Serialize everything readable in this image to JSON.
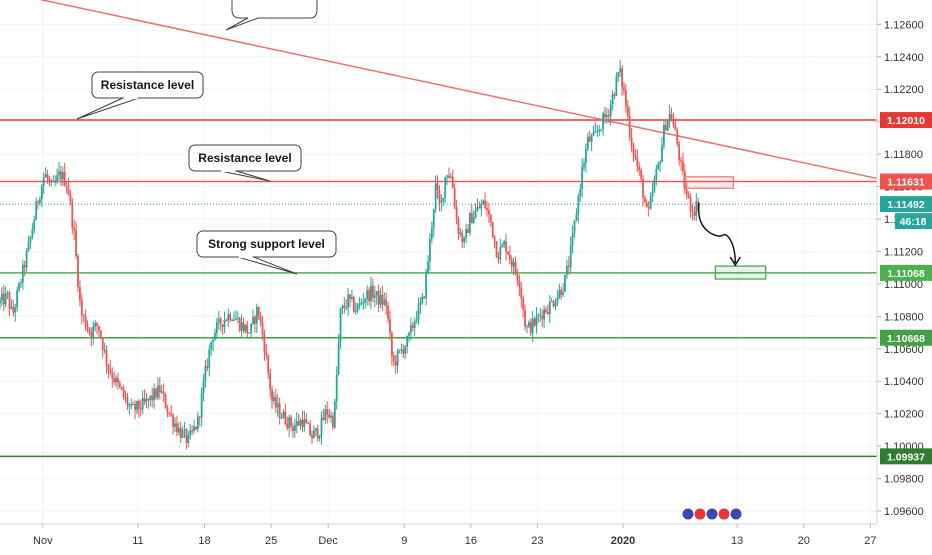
{
  "chart_data": {
    "type": "candlestick",
    "instrument_hint": "forex pair",
    "ylim": [
      1.0952,
      1.1275
    ],
    "y_ticks": [
      "1.12600",
      "1.12400",
      "1.12200",
      "1.12000",
      "1.11800",
      "1.11600",
      "1.11400",
      "1.11200",
      "1.11000",
      "1.10800",
      "1.10600",
      "1.10400",
      "1.10200",
      "1.10000",
      "1.09800",
      "1.09600"
    ],
    "x_ticks": [
      {
        "label": "Nov",
        "day": 0
      },
      {
        "label": "11",
        "day": 10
      },
      {
        "label": "18",
        "day": 17
      },
      {
        "label": "25",
        "day": 24
      },
      {
        "label": "Dec",
        "day": 30
      },
      {
        "label": "9",
        "day": 38
      },
      {
        "label": "16",
        "day": 45
      },
      {
        "label": "23",
        "day": 52
      },
      {
        "label": "2020",
        "day": 61
      },
      {
        "label": "13",
        "day": 73
      },
      {
        "label": "20",
        "day": 80
      },
      {
        "label": "27",
        "day": 87
      }
    ],
    "x_day_range": [
      -4.5,
      87.7
    ],
    "price_path": [
      [
        -4.5,
        1.1088
      ],
      [
        -3.5,
        1.1092
      ],
      [
        -3.0,
        1.108
      ],
      [
        -2.0,
        1.1105
      ],
      [
        -1.2,
        1.1125
      ],
      [
        -0.4,
        1.115
      ],
      [
        0.4,
        1.1168
      ],
      [
        1.2,
        1.1158
      ],
      [
        2.0,
        1.1168
      ],
      [
        2.8,
        1.1162
      ],
      [
        3.5,
        1.113
      ],
      [
        4.2,
        1.1082
      ],
      [
        5.2,
        1.107
      ],
      [
        6.0,
        1.1075
      ],
      [
        7.0,
        1.105
      ],
      [
        8.0,
        1.1038
      ],
      [
        9.5,
        1.1022
      ],
      [
        11.0,
        1.1026
      ],
      [
        12.5,
        1.1035
      ],
      [
        13.5,
        1.102
      ],
      [
        14.5,
        1.101
      ],
      [
        15.5,
        1.1003
      ],
      [
        16.5,
        1.1015
      ],
      [
        17.3,
        1.1045
      ],
      [
        18.0,
        1.1068
      ],
      [
        19.0,
        1.1077
      ],
      [
        20.0,
        1.1082
      ],
      [
        21.0,
        1.1075
      ],
      [
        22.0,
        1.107
      ],
      [
        22.8,
        1.1085
      ],
      [
        23.5,
        1.1062
      ],
      [
        24.3,
        1.1028
      ],
      [
        25.2,
        1.102
      ],
      [
        26.5,
        1.1012
      ],
      [
        27.5,
        1.1016
      ],
      [
        28.5,
        1.1006
      ],
      [
        29.3,
        1.101
      ],
      [
        30.0,
        1.1022
      ],
      [
        30.8,
        1.1015
      ],
      [
        31.5,
        1.1082
      ],
      [
        32.3,
        1.109
      ],
      [
        33.2,
        1.1084
      ],
      [
        34.0,
        1.1092
      ],
      [
        34.8,
        1.1095
      ],
      [
        35.6,
        1.109
      ],
      [
        36.3,
        1.1088
      ],
      [
        37.0,
        1.105
      ],
      [
        37.8,
        1.1058
      ],
      [
        38.6,
        1.1065
      ],
      [
        39.4,
        1.108
      ],
      [
        40.2,
        1.109
      ],
      [
        40.8,
        1.112
      ],
      [
        41.5,
        1.116
      ],
      [
        42.0,
        1.1145
      ],
      [
        42.6,
        1.117
      ],
      [
        43.2,
        1.1165
      ],
      [
        43.8,
        1.1135
      ],
      [
        44.5,
        1.1125
      ],
      [
        45.1,
        1.114
      ],
      [
        45.8,
        1.1145
      ],
      [
        46.6,
        1.115
      ],
      [
        47.3,
        1.1138
      ],
      [
        48.0,
        1.1118
      ],
      [
        48.8,
        1.1125
      ],
      [
        49.6,
        1.1112
      ],
      [
        50.3,
        1.1102
      ],
      [
        51.0,
        1.1072
      ],
      [
        51.8,
        1.1075
      ],
      [
        52.6,
        1.1082
      ],
      [
        53.4,
        1.1086
      ],
      [
        54.2,
        1.1092
      ],
      [
        55.0,
        1.11
      ],
      [
        55.6,
        1.1115
      ],
      [
        56.3,
        1.1145
      ],
      [
        56.9,
        1.117
      ],
      [
        57.5,
        1.1188
      ],
      [
        58.2,
        1.119
      ],
      [
        59.0,
        1.12
      ],
      [
        59.6,
        1.1205
      ],
      [
        60.3,
        1.122
      ],
      [
        60.8,
        1.1232
      ],
      [
        61.4,
        1.1215
      ],
      [
        62.0,
        1.119
      ],
      [
        62.6,
        1.1175
      ],
      [
        63.2,
        1.116
      ],
      [
        63.8,
        1.114
      ],
      [
        64.4,
        1.116
      ],
      [
        65.0,
        1.1175
      ],
      [
        65.6,
        1.1198
      ],
      [
        66.2,
        1.1205
      ],
      [
        66.8,
        1.119
      ],
      [
        67.4,
        1.1168
      ],
      [
        68.0,
        1.1152
      ],
      [
        68.6,
        1.1145
      ],
      [
        69.0,
        1.1149
      ]
    ],
    "horizontal_levels": [
      {
        "price": "1.12010",
        "value": 1.1201,
        "color": "#e53935"
      },
      {
        "price": "1.11631",
        "value": 1.11631,
        "color": "#ef5350"
      },
      {
        "price": "1.11492",
        "value": 1.11492,
        "color": "#26a69a"
      },
      {
        "price": "1.11068",
        "value": 1.11068,
        "color": "#4caf50"
      },
      {
        "price": "1.10668",
        "value": 1.10668,
        "color": "#43a047"
      },
      {
        "price": "1.09937",
        "value": 1.09937,
        "color": "#2e7d32"
      }
    ],
    "countdown_label": "46:18",
    "trendline": {
      "from": [
        -8.0,
        1.1285
      ],
      "to": [
        87.7,
        1.1165
      ],
      "color": "#e57373"
    },
    "callouts": [
      {
        "text": "Resistance level"
      },
      {
        "text": "Resistance level"
      },
      {
        "text": "Strong support level"
      }
    ],
    "projection_target_zone": {
      "day_from": 70.7,
      "day_to": 76.0,
      "price_from": 1.1103,
      "price_to": 1.1111,
      "color": "#43a047"
    },
    "current_zone": {
      "day_from": 67.4,
      "day_to": 72.6,
      "price_from": 1.1159,
      "price_to": 1.1166,
      "color": "#e57373"
    },
    "colors": {
      "up": "#26a69a",
      "down": "#ef5350",
      "grid": "#f0f3fa",
      "axis_text": "#333333"
    }
  }
}
